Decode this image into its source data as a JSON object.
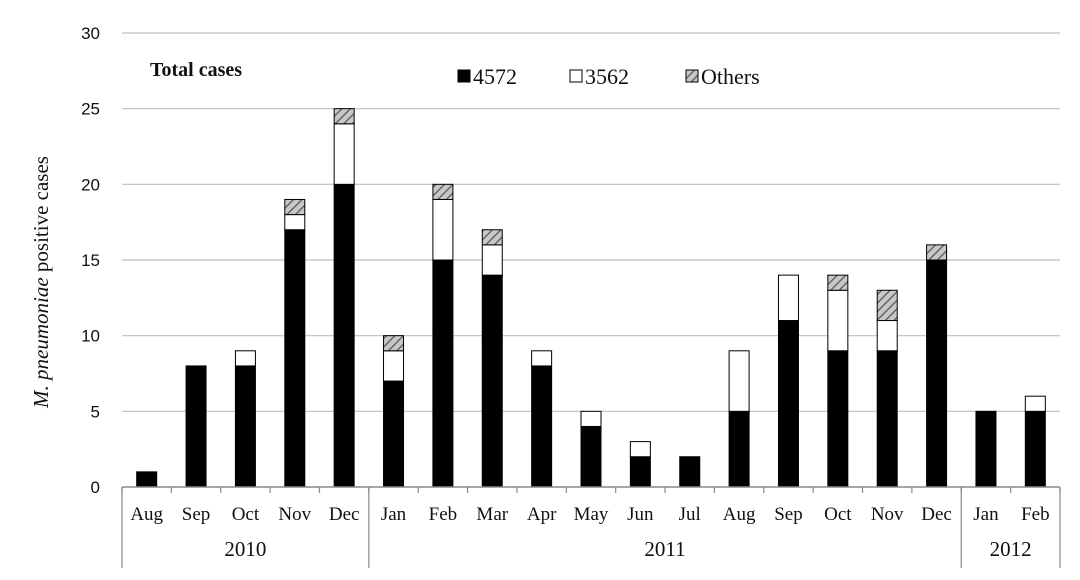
{
  "chart_data": {
    "type": "bar",
    "stacked": true,
    "title": "Total cases",
    "ylabel_italic": "M. pneumoniae",
    "ylabel_rest": " positive cases",
    "ylim": [
      0,
      30
    ],
    "yticks": [
      0,
      5,
      10,
      15,
      20,
      25,
      30
    ],
    "grid": true,
    "legend_position": "top-center",
    "categories": [
      "Aug",
      "Sep",
      "Oct",
      "Nov",
      "Dec",
      "Jan",
      "Feb",
      "Mar",
      "Apr",
      "May",
      "Jun",
      "Jul",
      "Aug",
      "Sep",
      "Oct",
      "Nov",
      "Dec",
      "Jan",
      "Feb"
    ],
    "groups": [
      {
        "label": "2010",
        "count": 5
      },
      {
        "label": "2011",
        "count": 12
      },
      {
        "label": "2012",
        "count": 2
      }
    ],
    "series": [
      {
        "name": "4572",
        "fill": "black",
        "values": [
          1,
          8,
          8,
          17,
          20,
          7,
          15,
          14,
          8,
          4,
          2,
          2,
          5,
          11,
          9,
          9,
          15,
          5,
          5
        ]
      },
      {
        "name": "3562",
        "fill": "white",
        "values": [
          0,
          0,
          1,
          1,
          4,
          2,
          4,
          2,
          1,
          1,
          1,
          0,
          4,
          3,
          4,
          2,
          0,
          0,
          1
        ]
      },
      {
        "name": "Others",
        "fill": "hatched",
        "values": [
          0,
          0,
          0,
          1,
          1,
          1,
          1,
          1,
          0,
          0,
          0,
          0,
          0,
          0,
          1,
          2,
          1,
          0,
          0
        ]
      }
    ],
    "colors": {
      "black": "#000000",
      "white": "#ffffff",
      "hatch_bg": "#c8c8c8",
      "hatch_line": "#555555",
      "grid": "#bfbfbf",
      "axis": "#888888"
    }
  }
}
